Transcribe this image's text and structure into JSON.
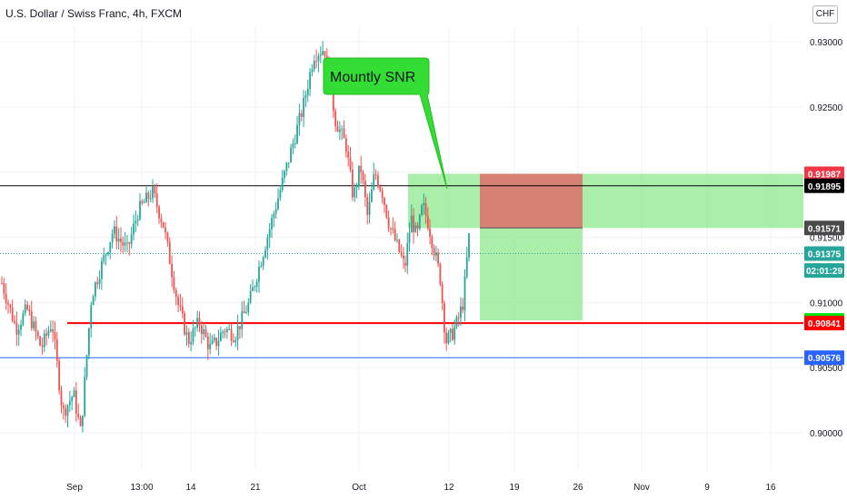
{
  "title": "U.S. Dollar / Swiss Franc, 4h, FXCM",
  "currency_button": "CHF",
  "callout_label": "Mountly SNR",
  "colors": {
    "up": "#26a69a",
    "down": "#ef5350",
    "support_line": "#ff0000",
    "lower_line": "#2962ff",
    "resistance_line": "#000000",
    "zone_green": "#8ce88c",
    "zone_red": "#e06666",
    "callout": "#33dd33"
  },
  "chart_data": {
    "type": "candlestick",
    "title": "U.S. Dollar / Swiss Franc, 4h, FXCM",
    "y_ticks": [
      "0.93000",
      "0.92500",
      "0.91500",
      "0.91000",
      "0.90500",
      "0.90000"
    ],
    "x_ticks": [
      "Sep",
      "13:00",
      "14",
      "21",
      "Oct",
      "12",
      "19",
      "26",
      "Nov",
      "9",
      "16"
    ],
    "ylim": [
      0.8975,
      0.9315
    ],
    "x_count": 230,
    "price_path": [
      [
        0,
        0.9115
      ],
      [
        8,
        0.908
      ],
      [
        14,
        0.9095
      ],
      [
        22,
        0.9065
      ],
      [
        28,
        0.9085
      ],
      [
        34,
        0.9015
      ],
      [
        40,
        0.903
      ],
      [
        44,
        0.9
      ],
      [
        50,
        0.9105
      ],
      [
        62,
        0.9155
      ],
      [
        70,
        0.914
      ],
      [
        76,
        0.917
      ],
      [
        84,
        0.9185
      ],
      [
        90,
        0.916
      ],
      [
        98,
        0.91
      ],
      [
        104,
        0.907
      ],
      [
        110,
        0.9085
      ],
      [
        116,
        0.9065
      ],
      [
        120,
        0.907
      ],
      [
        124,
        0.908
      ],
      [
        130,
        0.9075
      ],
      [
        138,
        0.91
      ],
      [
        146,
        0.914
      ],
      [
        154,
        0.918
      ],
      [
        162,
        0.922
      ],
      [
        168,
        0.925
      ],
      [
        174,
        0.929
      ],
      [
        180,
        0.9295
      ],
      [
        186,
        0.924
      ],
      [
        192,
        0.922
      ],
      [
        196,
        0.918
      ],
      [
        200,
        0.9205
      ],
      [
        204,
        0.9165
      ],
      [
        208,
        0.92
      ],
      [
        212,
        0.9185
      ],
      [
        216,
        0.916
      ],
      [
        220,
        0.9145
      ],
      [
        224,
        0.913
      ]
    ],
    "price_path_2": [
      [
        0,
        0.913
      ],
      [
        4,
        0.9165
      ],
      [
        8,
        0.915
      ],
      [
        12,
        0.9175
      ],
      [
        16,
        0.916
      ],
      [
        20,
        0.914
      ],
      [
        24,
        0.912
      ],
      [
        28,
        0.907
      ],
      [
        32,
        0.9075
      ],
      [
        36,
        0.9085
      ],
      [
        40,
        0.91
      ],
      [
        44,
        0.915
      ]
    ],
    "lines": [
      {
        "label": "0.91895",
        "value": 0.91895,
        "color": "#000000"
      },
      {
        "label": "0.90841",
        "value": 0.90841,
        "color": "#ff0000"
      },
      {
        "label": "0.90576",
        "value": 0.90576,
        "color": "#2962ff"
      }
    ],
    "price_tags": [
      {
        "label": "0.91987",
        "value": 0.91987,
        "bg": "#f23645",
        "fg": "#ffffff"
      },
      {
        "label": "0.91895",
        "value": 0.91895,
        "bg": "#000000",
        "fg": "#ffffff"
      },
      {
        "label": "0.91571",
        "value": 0.91571,
        "bg": "#4a4a4a",
        "fg": "#ffffff"
      },
      {
        "label": "0.91375",
        "value": 0.91375,
        "bg": "#26a69a",
        "fg": "#ffffff"
      },
      {
        "label": "02:01:29",
        "value": 0.91245,
        "bg": "#26a69a",
        "fg": "#ffffff"
      },
      {
        "label": "0.90862",
        "value": 0.90862,
        "bg": "#00e600",
        "fg": "#000000"
      },
      {
        "label": "0.90841",
        "value": 0.90841,
        "bg": "#ff0000",
        "fg": "#ffffff"
      },
      {
        "label": "0.90576",
        "value": 0.90576,
        "bg": "#2962ff",
        "fg": "#ffffff"
      }
    ],
    "zones": [
      {
        "name": "monthly-snr-zone",
        "y_top": 0.91987,
        "y_bottom": 0.91571,
        "color": "#8ce88c"
      },
      {
        "name": "stop-zone",
        "y_top": 0.91987,
        "y_bottom": 0.91571,
        "color": "#e06666"
      },
      {
        "name": "target-zone",
        "y_top": 0.91571,
        "y_bottom": 0.90862,
        "color": "#8ce88c"
      }
    ],
    "last_price": 0.91375,
    "entry_price": 0.91571,
    "stop_price": 0.91987,
    "target_price": 0.90862
  }
}
